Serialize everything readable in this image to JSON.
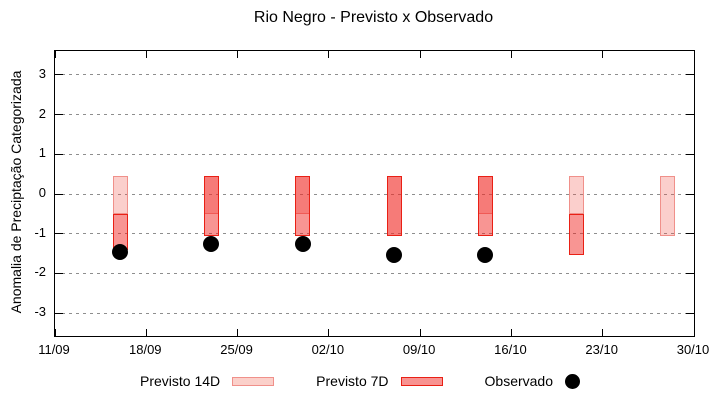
{
  "title": "Rio Negro - Previsto x Observado",
  "colors": {
    "background": "#ffffff",
    "axis": "#000000",
    "grid": "#8e8e8e",
    "previsto_14d_fill": "rgba(242,82,72,0.28)",
    "previsto_14d_border": "#f0908a",
    "previsto_14d_solid": "#fbd0ca",
    "previsto_7d_fill": "rgba(240,30,25,0.47)",
    "previsto_7d_border": "#e92015",
    "previsto_7d_solid": "#f89391",
    "observado": "#000000"
  },
  "legend": {
    "items": [
      {
        "label": "Previsto 14D",
        "marker": "swatch-14d"
      },
      {
        "label": "Previsto 7D",
        "marker": "swatch-7d"
      },
      {
        "label": "Observado",
        "marker": "black-dot"
      }
    ]
  },
  "chart_data": {
    "type": "bar",
    "subtype": "forecast-range-bars-with-observed-scatter",
    "title": "Rio Negro - Previsto x Observado",
    "xlabel": "",
    "ylabel": "Anomalia de Preciptação Categorizada",
    "ylim": [
      -3.6,
      3.6
    ],
    "yticks": [
      -3,
      -2,
      -1,
      0,
      1,
      2,
      3
    ],
    "grid": {
      "horizontal": true,
      "vertical": false,
      "style": "dashed"
    },
    "legend_position": "bottom",
    "x_axis": {
      "tick_labels": [
        "11/09",
        "18/09",
        "25/09",
        "02/10",
        "09/10",
        "16/10",
        "23/10",
        "30/10"
      ],
      "tick_positions_days": [
        0,
        7,
        14,
        21,
        28,
        35,
        42,
        49
      ],
      "range_days": [
        0,
        49
      ]
    },
    "series": [
      {
        "name": "Previsto 14D",
        "type": "range-bar",
        "ranges": [
          {
            "x_day": 5,
            "high": 0.45,
            "low": -0.5
          },
          {
            "x_day": 12,
            "high": 0.45,
            "low": -0.5
          },
          {
            "x_day": 19,
            "high": 0.45,
            "low": -0.5
          },
          {
            "x_day": 26,
            "high": 0.45,
            "low": -1.05
          },
          {
            "x_day": 33,
            "high": 0.45,
            "low": -0.5
          },
          {
            "x_day": 40,
            "high": 0.45,
            "low": -0.5
          },
          {
            "x_day": 47,
            "high": 0.45,
            "low": -1.05
          }
        ]
      },
      {
        "name": "Previsto 7D",
        "type": "range-bar",
        "ranges": [
          {
            "x_day": 5,
            "high": -0.5,
            "low": -1.4
          },
          {
            "x_day": 12,
            "high": 0.45,
            "low": -1.05
          },
          {
            "x_day": 19,
            "high": 0.45,
            "low": -1.05
          },
          {
            "x_day": 26,
            "high": 0.45,
            "low": -1.05
          },
          {
            "x_day": 33,
            "high": 0.45,
            "low": -1.05
          },
          {
            "x_day": 40,
            "high": -0.5,
            "low": -1.55
          }
        ]
      },
      {
        "name": "Observado",
        "type": "scatter",
        "points": [
          {
            "x_day": 5,
            "y": -1.45
          },
          {
            "x_day": 12,
            "y": -1.25
          },
          {
            "x_day": 19,
            "y": -1.25
          },
          {
            "x_day": 26,
            "y": -1.55
          },
          {
            "x_day": 33,
            "y": -1.55
          }
        ]
      }
    ]
  }
}
